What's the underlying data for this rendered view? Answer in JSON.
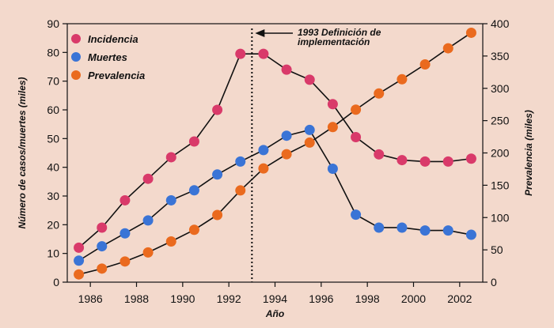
{
  "chart_data": {
    "type": "line",
    "xlabel": "Año",
    "ylabel": "Número de casos/muertes (miles)",
    "y2label": "Prevalencia (miles)",
    "xlim": [
      1985,
      2003
    ],
    "ylim": [
      0,
      90
    ],
    "y2lim": [
      0,
      400
    ],
    "xticks": [
      "1986",
      "1988",
      "1990",
      "1992",
      "1994",
      "1996",
      "1998",
      "2000",
      "2002"
    ],
    "yticks": [
      "0",
      "10",
      "20",
      "30",
      "40",
      "50",
      "60",
      "70",
      "80",
      "90"
    ],
    "y2ticks": [
      "0",
      "50",
      "100",
      "150",
      "200",
      "250",
      "300",
      "350",
      "400"
    ],
    "legend_position": "top-left",
    "annotation": {
      "line1": "1993 Definición de",
      "line2": "implementación",
      "x": 1993
    },
    "series": [
      {
        "name": "Incidencia",
        "color": "#d93a6a",
        "axis": "left",
        "x": [
          1985.5,
          1986.5,
          1987.5,
          1988.5,
          1989.5,
          1990.5,
          1991.5,
          1992.5,
          1993.5,
          1994.5,
          1995.5,
          1996.5,
          1997.5,
          1998.5,
          1999.5,
          2000.5,
          2001.5,
          2002.5
        ],
        "y": [
          12,
          19,
          28.5,
          36,
          43.5,
          49,
          60,
          79.5,
          79.5,
          74,
          70.5,
          62,
          50.5,
          44.5,
          42.5,
          42,
          42,
          43
        ]
      },
      {
        "name": "Muertes",
        "color": "#3a74d6",
        "axis": "left",
        "x": [
          1985.5,
          1986.5,
          1987.5,
          1988.5,
          1989.5,
          1990.5,
          1991.5,
          1992.5,
          1993.5,
          1994.5,
          1995.5,
          1996.5,
          1997.5,
          1998.5,
          1999.5,
          2000.5,
          2001.5,
          2002.5
        ],
        "y": [
          7.5,
          12.5,
          17,
          21.5,
          28.5,
          32,
          37.5,
          42,
          46,
          51,
          53,
          39.5,
          23.5,
          19,
          19,
          18,
          18,
          16.5
        ]
      },
      {
        "name": "Prevalencia",
        "color": "#ea6a1e",
        "axis": "right",
        "x": [
          1985.5,
          1986.5,
          1987.5,
          1988.5,
          1989.5,
          1990.5,
          1991.5,
          1992.5,
          1993.5,
          1994.5,
          1995.5,
          1996.5,
          1997.5,
          1998.5,
          1999.5,
          2000.5,
          2001.5,
          2002.5
        ],
        "y": [
          12,
          21,
          32,
          46,
          63,
          81,
          104,
          142,
          176,
          198,
          216,
          240,
          267,
          292,
          314,
          337,
          362,
          386
        ]
      }
    ]
  }
}
